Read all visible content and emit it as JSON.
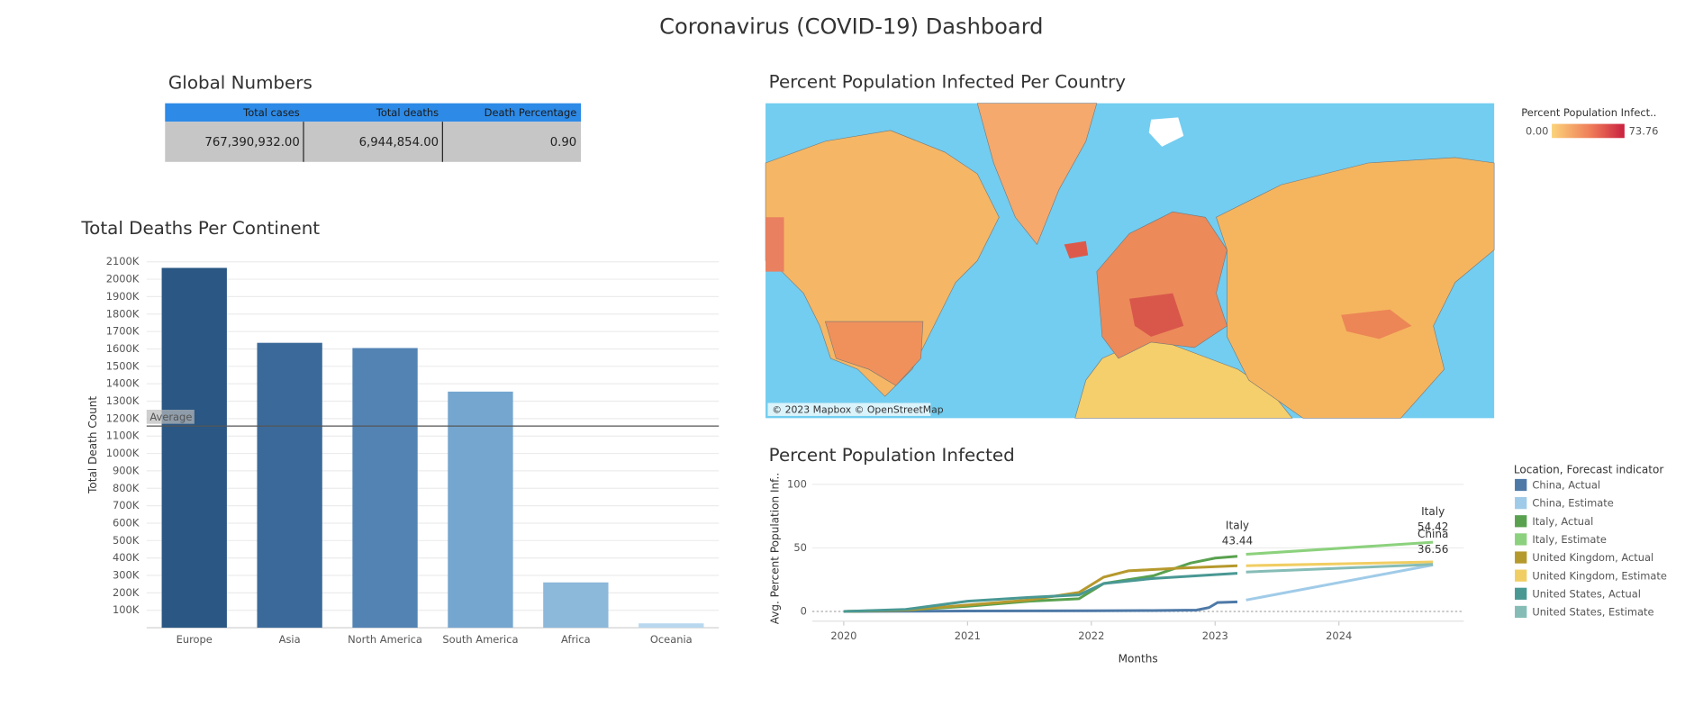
{
  "title": "Coronavirus (COVID-19) Dashboard",
  "global_numbers": {
    "title": "Global Numbers",
    "headers": [
      "Total cases",
      "Total deaths",
      "Death Percentage"
    ],
    "row": [
      "767,390,932.00",
      "6,944,854.00",
      "0.90"
    ]
  },
  "map": {
    "title": "Percent Population Infected Per Country",
    "legend_title": "Percent Population Infect..",
    "legend_min": "0.00",
    "legend_max": "73.76",
    "attribution": "© 2023 Mapbox © OpenStreetMap"
  },
  "chart_data": [
    {
      "type": "bar",
      "title": "Total Deaths Per Continent",
      "y_label": "Total Death Count",
      "categories": [
        "Europe",
        "Asia",
        "North America",
        "South America",
        "Africa",
        "Oceania"
      ],
      "values": [
        2065000,
        1635000,
        1605000,
        1355000,
        260000,
        25000
      ],
      "colors": [
        "#2a5783",
        "#3b6a9a",
        "#5283b3",
        "#75a6d0",
        "#8cb8da",
        "#b9d8ef"
      ],
      "ylim": [
        0,
        2100000
      ],
      "yticks": [
        {
          "value": 100000,
          "label": "100K"
        },
        {
          "value": 200000,
          "label": "200K"
        },
        {
          "value": 300000,
          "label": "300K"
        },
        {
          "value": 400000,
          "label": "400K"
        },
        {
          "value": 500000,
          "label": "500K"
        },
        {
          "value": 600000,
          "label": "600K"
        },
        {
          "value": 700000,
          "label": "700K"
        },
        {
          "value": 800000,
          "label": "800K"
        },
        {
          "value": 900000,
          "label": "900K"
        },
        {
          "value": 1000000,
          "label": "1000K"
        },
        {
          "value": 1100000,
          "label": "1100K"
        },
        {
          "value": 1200000,
          "label": "1200K"
        },
        {
          "value": 1300000,
          "label": "1300K"
        },
        {
          "value": 1400000,
          "label": "1400K"
        },
        {
          "value": 1500000,
          "label": "1500K"
        },
        {
          "value": 1600000,
          "label": "1600K"
        },
        {
          "value": 1700000,
          "label": "1700K"
        },
        {
          "value": 1800000,
          "label": "1800K"
        },
        {
          "value": 1900000,
          "label": "1900K"
        },
        {
          "value": 2000000,
          "label": "2000K"
        },
        {
          "value": 2100000,
          "label": "2100K"
        }
      ],
      "reference_line": {
        "label": "Average",
        "value": 1157500
      },
      "grid": true
    },
    {
      "type": "line",
      "title": "Percent Population Infected",
      "y_label": "Avg. Percent Population Inf..",
      "x_label": "Months",
      "legend_title": "Location, Forecast indicator",
      "xlim": [
        2019.6,
        2024.9
      ],
      "xticks": [
        2020,
        2021,
        2022,
        2023,
        2024
      ],
      "ylim": [
        0,
        100
      ],
      "yticks": [
        0,
        50,
        100
      ],
      "grid": true,
      "series": [
        {
          "name": "China, Actual",
          "color": "#4e79a7",
          "x": [
            2020,
            2020.5,
            2021,
            2021.5,
            2022,
            2022.5,
            2022.85,
            2022.95,
            2023.02,
            2023.18
          ],
          "values": [
            0,
            0.2,
            0.3,
            0.4,
            0.5,
            0.7,
            1,
            3,
            7,
            7.5
          ]
        },
        {
          "name": "China, Estimate",
          "color": "#a0cbe8",
          "x": [
            2023.25,
            2024.76
          ],
          "values": [
            9,
            36.56
          ]
        },
        {
          "name": "Italy, Actual",
          "color": "#59a14f",
          "x": [
            2020,
            2020.5,
            2021,
            2021.5,
            2021.9,
            2022.1,
            2022.5,
            2022.8,
            2023,
            2023.18
          ],
          "values": [
            0,
            1,
            4,
            8,
            10,
            22,
            28,
            38,
            42,
            43.44
          ]
        },
        {
          "name": "Italy, Estimate",
          "color": "#8cd17d",
          "x": [
            2023.25,
            2024.76
          ],
          "values": [
            45,
            54.42
          ]
        },
        {
          "name": "United Kingdom, Actual",
          "color": "#b6992d",
          "x": [
            2020,
            2020.5,
            2021,
            2021.5,
            2021.9,
            2022.1,
            2022.3,
            2022.7,
            2023.18
          ],
          "values": [
            0,
            1,
            5,
            9,
            15,
            27,
            32,
            34,
            36
          ]
        },
        {
          "name": "United Kingdom, Estimate",
          "color": "#f1ce63",
          "x": [
            2023.25,
            2024.76
          ],
          "values": [
            36,
            39
          ]
        },
        {
          "name": "United States, Actual",
          "color": "#499894",
          "x": [
            2020,
            2020.5,
            2021,
            2021.5,
            2021.9,
            2022.1,
            2022.5,
            2023,
            2023.18
          ],
          "values": [
            0,
            1.5,
            8,
            11,
            13,
            22,
            26,
            29,
            30
          ]
        },
        {
          "name": "United States, Estimate",
          "color": "#86bcb6",
          "x": [
            2023.25,
            2024.76
          ],
          "values": [
            31,
            37
          ]
        }
      ],
      "annotations": [
        {
          "label": "Italy",
          "x": 2023.18,
          "value": 43.44
        },
        {
          "label": "Italy",
          "x": 2024.76,
          "value": 54.42
        },
        {
          "label": "China",
          "x": 2024.76,
          "value": 36.56
        }
      ]
    }
  ]
}
